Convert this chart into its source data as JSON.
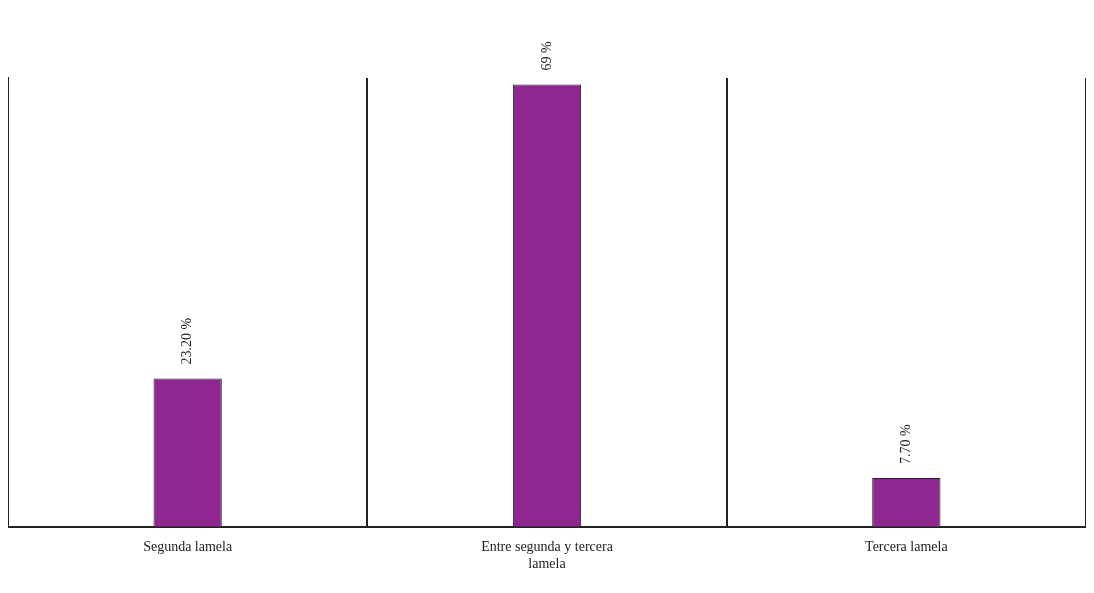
{
  "chart_data": {
    "type": "bar",
    "categories": [
      "Segunda lamela",
      "Entre segunda y tercera lamela",
      "Tercera lamela"
    ],
    "values": [
      23.2,
      69,
      7.7
    ],
    "value_labels": [
      "23.20 %",
      "69 %",
      "7.70 %"
    ],
    "color": "#8e278f",
    "tick_labels": "x",
    "grid": "x",
    "legend": false
  }
}
